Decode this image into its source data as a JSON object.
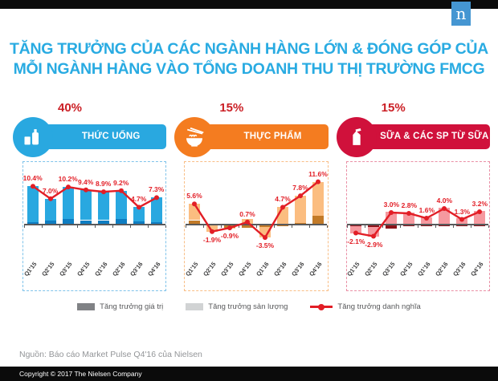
{
  "header": {
    "brand_letter": "n",
    "title_line1": "TĂNG TRƯỞNG CỦA CÁC NGÀNH HÀNG LỚN & ĐÓNG GÓP CỦA",
    "title_line2": "MỖI NGÀNH HÀNG VÀO TỔNG DOANH THU THỊ TRƯỜNG FMCG",
    "title_color": "#29ABE2",
    "topbar_color": "#0b0b0b",
    "logo_color": "#4596D2"
  },
  "legend": {
    "items": [
      {
        "label": "Tăng trưởng giá trị",
        "color": "#808285",
        "type": "swatch"
      },
      {
        "label": "Tăng trưởng sản lượng",
        "color": "#D1D3D4",
        "type": "swatch"
      },
      {
        "label": "Tăng trưởng danh nghĩa",
        "color": "#E21E26",
        "type": "line"
      }
    ]
  },
  "source": "Nguồn: Báo cáo Market Pulse Q4'16 của Nielsen",
  "copyright": "Copyright © 2017  The Nielsen Company",
  "chart_data": [
    {
      "type": "bar",
      "panel_label": "THỨC UỐNG",
      "contribution": "40%",
      "icon": "beverage-icon",
      "categories": [
        "Q1'15",
        "Q2'15",
        "Q3'15",
        "Q4'15",
        "Q1'16",
        "Q2'16",
        "Q3'16",
        "Q4'16"
      ],
      "series": [
        {
          "name": "Tăng trưởng giá trị",
          "values": [
            0.7,
            1.0,
            1.5,
            1.2,
            1.2,
            1.5,
            0.9,
            0.6
          ]
        },
        {
          "name": "Tăng trưởng sản lượng",
          "values": [
            9.7,
            6.0,
            8.7,
            8.2,
            7.7,
            7.7,
            3.8,
            6.7
          ]
        },
        {
          "name": "Tăng trưởng danh nghĩa",
          "values": [
            10.4,
            7.0,
            10.2,
            9.4,
            8.9,
            9.2,
            4.7,
            7.3
          ],
          "labels": [
            "10.4%",
            "7.0%",
            "10.2%",
            "9.4%",
            "8.9%",
            "9.2%",
            "4.7%",
            "7.3%"
          ]
        }
      ],
      "ylim": [
        -2,
        14
      ],
      "colors": {
        "accent": "#29A8E0",
        "bar_value": "#0E7DC2",
        "bar_volume": "#29A8E0",
        "border": "#7FC3EA",
        "line": "#E21E26",
        "label": "#E21E26"
      }
    },
    {
      "type": "bar",
      "panel_label": "THỰC PHẨM",
      "contribution": "15%",
      "icon": "food-icon",
      "categories": [
        "Q1'15",
        "Q2'15",
        "Q3'15",
        "Q4'15",
        "Q1'16",
        "Q2'16",
        "Q3'16",
        "Q4'16"
      ],
      "series": [
        {
          "name": "Tăng trưởng giá trị",
          "values": [
            1.2,
            -0.3,
            -0.9,
            -0.8,
            -0.7,
            -0.5,
            0.4,
            2.4
          ]
        },
        {
          "name": "Tăng trưởng sản lượng",
          "values": [
            4.4,
            -1.6,
            -0.2,
            1.5,
            -2.8,
            4.7,
            7.4,
            9.2
          ]
        },
        {
          "name": "Tăng trưởng danh nghĩa",
          "values": [
            5.6,
            -1.9,
            -0.9,
            0.7,
            -3.5,
            4.7,
            7.8,
            11.6
          ],
          "labels": [
            "5.6%",
            "-1.9%",
            "-0.9%",
            "0.7%",
            "-3.5%",
            "4.7%",
            "7.8%",
            "11.6%"
          ]
        }
      ],
      "ylim": [
        -5,
        14
      ],
      "colors": {
        "accent": "#F47C20",
        "bar_value": "#C27A28",
        "bar_volume": "#FBBD80",
        "border": "#F9BE86",
        "line": "#E21E26",
        "label": "#E21E26"
      }
    },
    {
      "type": "bar",
      "panel_label": "SỮA & CÁC SP TỪ SỮA",
      "contribution": "15%",
      "icon": "dairy-icon",
      "categories": [
        "Q1'15",
        "Q2'15",
        "Q3'15",
        "Q4'15",
        "Q1'16",
        "Q2'16",
        "Q3'16",
        "Q4'16"
      ],
      "series": [
        {
          "name": "Tăng trưởng giá trị",
          "values": [
            -0.4,
            -0.6,
            -1.0,
            -0.4,
            -0.4,
            -0.4,
            -0.4,
            -0.3
          ]
        },
        {
          "name": "Tăng trưởng sản lượng",
          "values": [
            -1.7,
            -2.3,
            3.2,
            3.0,
            1.9,
            4.2,
            1.6,
            3.4
          ]
        },
        {
          "name": "Tăng trưởng danh nghĩa",
          "values": [
            -2.1,
            -2.9,
            3.0,
            2.8,
            1.6,
            4.0,
            1.3,
            3.2
          ],
          "labels": [
            "-2.1%",
            "-2.9%",
            "3.0%",
            "2.8%",
            "1.6%",
            "4.0%",
            "1.3%",
            "3.2%"
          ]
        }
      ],
      "ylim": [
        -4,
        6
      ],
      "colors": {
        "accent": "#D0113B",
        "bar_value": "#8C1118",
        "bar_volume": "#F5999F",
        "border": "#EA8FA5",
        "line": "#E21E26",
        "label": "#E21E26"
      }
    }
  ]
}
